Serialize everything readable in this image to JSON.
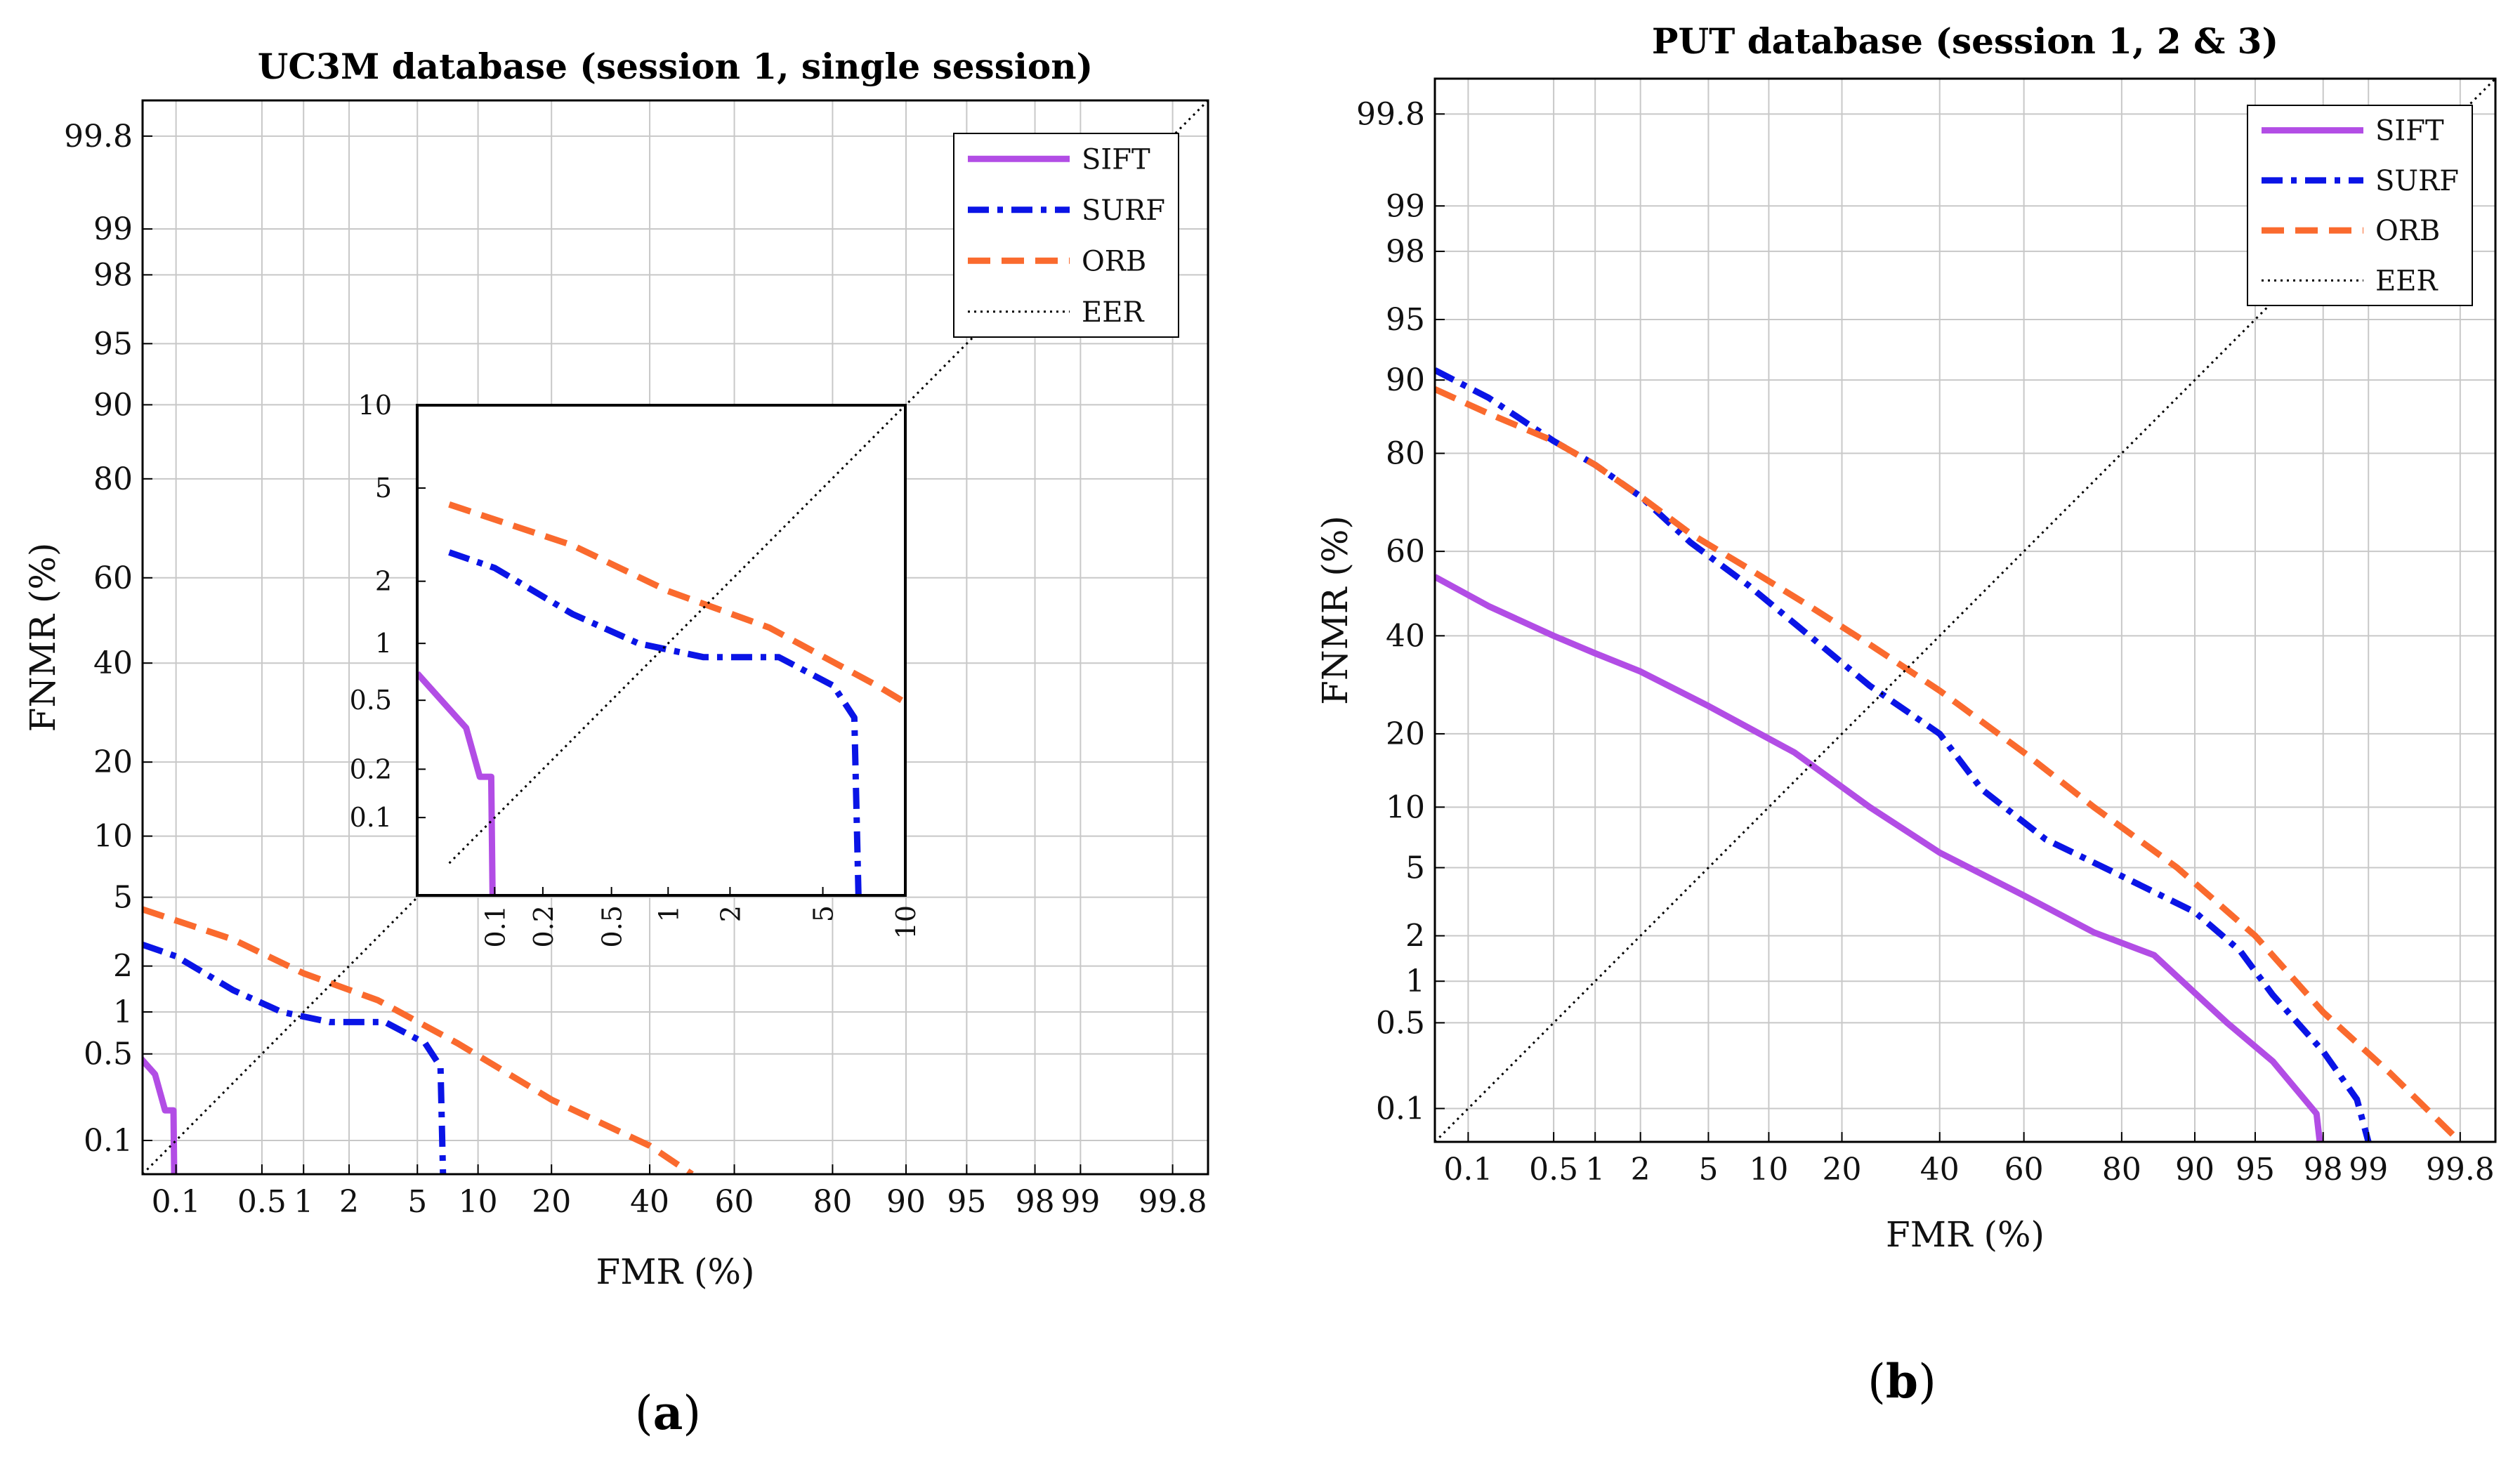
{
  "chart_data": [
    {
      "type": "line",
      "panel_label": "(a)",
      "panel_letter": "a",
      "title": "UC3M database (session 1, single session)",
      "xlabel": "FMR (%)",
      "ylabel": "FNMR (%)",
      "scale": "normal-deviate (DET)",
      "xlim": [
        0.05,
        99.9
      ],
      "ylim": [
        0.05,
        99.9
      ],
      "xticks": [
        "0.1",
        "0.5",
        "1",
        "2",
        "5",
        "10",
        "20",
        "40",
        "60",
        "80",
        "90",
        "95",
        "98",
        "99",
        "99.8"
      ],
      "yticks": [
        "0.1",
        "0.5",
        "1",
        "2",
        "5",
        "10",
        "20",
        "40",
        "60",
        "80",
        "90",
        "95",
        "98",
        "99",
        "99.8"
      ],
      "legend_position": "top-right",
      "series": [
        {
          "name": "SIFT",
          "color": "#b24de5",
          "style": "solid",
          "points": [
            [
              0.03,
              0.7
            ],
            [
              0.03,
              0.7
            ],
            [
              0.065,
              0.35
            ],
            [
              0.08,
              0.18
            ],
            [
              0.095,
              0.18
            ],
            [
              0.1,
              0.001
            ]
          ]
        },
        {
          "name": "SURF",
          "color": "#0a14e6",
          "style": "dash-dot",
          "points": [
            [
              0.05,
              2.7
            ],
            [
              0.1,
              2.3
            ],
            [
              0.3,
              1.4
            ],
            [
              0.7,
              1.0
            ],
            [
              1.5,
              0.85
            ],
            [
              3.3,
              0.85
            ],
            [
              5.5,
              0.6
            ],
            [
              6.6,
              0.4
            ],
            [
              7.1,
              0.001
            ]
          ]
        },
        {
          "name": "ORB",
          "color": "#fa6a2e",
          "style": "dashed",
          "points": [
            [
              0.05,
              4.3
            ],
            [
              0.3,
              2.9
            ],
            [
              1,
              1.8
            ],
            [
              3,
              1.2
            ],
            [
              8,
              0.6
            ],
            [
              20,
              0.22
            ],
            [
              40,
              0.09
            ],
            [
              50,
              0.05
            ]
          ]
        },
        {
          "name": "EER",
          "color": "#000000",
          "style": "dotted",
          "points": [
            [
              0.05,
              0.05
            ],
            [
              99.9,
              99.9
            ]
          ]
        }
      ],
      "inset": {
        "xlim": [
          0.03,
          10
        ],
        "ylim": [
          0.03,
          10
        ],
        "xticks": [
          "0.1",
          "0.2",
          "0.5",
          "1",
          "2",
          "5",
          "10"
        ],
        "yticks": [
          "0.1",
          "0.2",
          "0.5",
          "1",
          "2",
          "5",
          "10"
        ]
      }
    },
    {
      "type": "line",
      "panel_label": "(b)",
      "panel_letter": "b",
      "title": "PUT database (session 1, 2 & 3)",
      "xlabel": "FMR (%)",
      "ylabel": "FNMR (%)",
      "scale": "normal-deviate (DET)",
      "xlim": [
        0.05,
        99.9
      ],
      "ylim": [
        0.05,
        99.9
      ],
      "xticks": [
        "0.1",
        "0.5",
        "1",
        "2",
        "5",
        "10",
        "20",
        "40",
        "60",
        "80",
        "90",
        "95",
        "98",
        "99",
        "99.8"
      ],
      "yticks": [
        "0.1",
        "0.5",
        "1",
        "2",
        "5",
        "10",
        "20",
        "40",
        "60",
        "80",
        "90",
        "95",
        "98",
        "99",
        "99.8"
      ],
      "legend_position": "top-right",
      "series": [
        {
          "name": "SIFT",
          "color": "#b24de5",
          "style": "solid",
          "points": [
            [
              0.05,
              54
            ],
            [
              0.15,
              47
            ],
            [
              0.5,
              40
            ],
            [
              1,
              36
            ],
            [
              2,
              32
            ],
            [
              5,
              25
            ],
            [
              13,
              17
            ],
            [
              25,
              10
            ],
            [
              40,
              6
            ],
            [
              60,
              3.5
            ],
            [
              75,
              2.1
            ],
            [
              85,
              1.5
            ],
            [
              93,
              0.5
            ],
            [
              96,
              0.25
            ],
            [
              97.8,
              0.09
            ],
            [
              97.9,
              0.05
            ]
          ]
        },
        {
          "name": "SURF",
          "color": "#0a14e6",
          "style": "dash-dot",
          "points": [
            [
              0.05,
              91
            ],
            [
              0.15,
              88
            ],
            [
              0.5,
              82
            ],
            [
              1,
              78
            ],
            [
              2,
              72
            ],
            [
              4,
              62
            ],
            [
              8,
              52
            ],
            [
              15,
              40
            ],
            [
              25,
              29
            ],
            [
              40,
              20
            ],
            [
              50,
              12
            ],
            [
              65,
              7
            ],
            [
              80,
              4.5
            ],
            [
              90,
              2.8
            ],
            [
              94,
              1.6
            ],
            [
              96,
              0.8
            ],
            [
              98,
              0.3
            ],
            [
              98.8,
              0.12
            ],
            [
              99,
              0.05
            ]
          ]
        },
        {
          "name": "ORB",
          "color": "#fa6a2e",
          "style": "dashed",
          "points": [
            [
              0.05,
              89
            ],
            [
              0.15,
              86
            ],
            [
              0.5,
              82
            ],
            [
              1,
              78
            ],
            [
              2,
              72
            ],
            [
              4,
              64
            ],
            [
              8,
              56
            ],
            [
              15,
              47
            ],
            [
              25,
              38
            ],
            [
              40,
              28
            ],
            [
              60,
              17
            ],
            [
              75,
              10
            ],
            [
              88,
              5
            ],
            [
              95,
              2
            ],
            [
              98,
              0.6
            ],
            [
              99.3,
              0.2
            ],
            [
              99.8,
              0.05
            ]
          ]
        },
        {
          "name": "EER",
          "color": "#000000",
          "style": "dotted",
          "points": [
            [
              0.05,
              0.05
            ],
            [
              99.9,
              99.9
            ]
          ]
        }
      ]
    }
  ]
}
